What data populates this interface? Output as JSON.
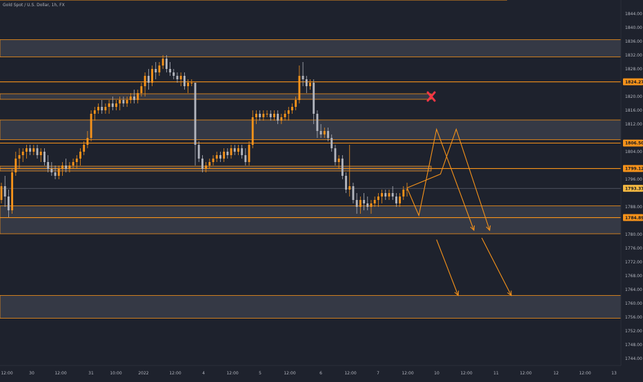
{
  "header": {
    "symbol_title": "Gold Spot / U.S. Dollar, 1h, FX"
  },
  "colors": {
    "background": "#1e222d",
    "zone_fill": "#373b47",
    "level_line": "#f7931a",
    "bull_candle": "#f7931a",
    "bear_candle": "#b2b5be",
    "axis_text": "#b2b5be",
    "invalid_marker": "#f23645",
    "last_price_badge": "#f5b942"
  },
  "chart_data": {
    "type": "candlestick",
    "title": "Gold Spot / U.S. Dollar, 1h, FX",
    "ylim": [
      1742,
      1848
    ],
    "y_ticks": [
      1844,
      1840,
      1836,
      1832,
      1828,
      1820,
      1816,
      1812,
      1804,
      1796,
      1788,
      1780,
      1776,
      1772,
      1768,
      1764,
      1760,
      1756,
      1752,
      1748,
      1744
    ],
    "x_ticks": [
      "12:00",
      "30",
      "12:00",
      "31",
      "10:00",
      "2022",
      "12:00",
      "4",
      "12:00",
      "5",
      "12:00",
      "6",
      "12:00",
      "7",
      "12:00",
      "10",
      "12:00",
      "11",
      "12:00",
      "12",
      "12:00",
      "13"
    ],
    "price_badges": [
      {
        "label": "1824.27",
        "value": 1824.27,
        "style": "level"
      },
      {
        "label": "1806.50",
        "value": 1806.5,
        "style": "level"
      },
      {
        "label": "1799.12",
        "value": 1799.12,
        "style": "level"
      },
      {
        "label": "1793.37",
        "value": 1793.37,
        "style": "last"
      },
      {
        "label": "1784.89",
        "value": 1784.89,
        "style": "level"
      }
    ],
    "zones": [
      {
        "low": 1831.5,
        "high": 1836.5,
        "extent": "full"
      },
      {
        "low": 1819.2,
        "high": 1820.8,
        "extent": "partial"
      },
      {
        "low": 1807.5,
        "high": 1813.2,
        "extent": "full"
      },
      {
        "low": 1798.4,
        "high": 1799.8,
        "extent": "partial"
      },
      {
        "low": 1780.2,
        "high": 1788.3,
        "extent": "full"
      },
      {
        "low": 1755.7,
        "high": 1762.3,
        "extent": "full"
      }
    ],
    "levels": [
      1848,
      1824.27,
      1806.5,
      1799.12,
      1784.89
    ],
    "last_price": 1793.37,
    "projection_paths": [
      [
        [
          0,
          1793.5
        ],
        [
          0.3,
          1785.5
        ],
        [
          0.75,
          1810.5
        ],
        [
          1.7,
          1781.2
        ]
      ],
      [
        [
          0,
          1793.5
        ],
        [
          0.85,
          1797.5
        ],
        [
          1.25,
          1810.5
        ],
        [
          2.1,
          1781.2
        ]
      ],
      [
        [
          0.75,
          1778.5
        ],
        [
          1.3,
          1762.3
        ]
      ],
      [
        [
          1.9,
          1779
        ],
        [
          2.65,
          1762.3
        ]
      ]
    ],
    "candles": [
      {
        "o": 1790,
        "h": 1795,
        "l": 1789,
        "c": 1794
      },
      {
        "o": 1794,
        "h": 1797,
        "l": 1788,
        "c": 1791
      },
      {
        "o": 1791,
        "h": 1793,
        "l": 1785,
        "c": 1787
      },
      {
        "o": 1787,
        "h": 1799,
        "l": 1786,
        "c": 1798
      },
      {
        "o": 1798,
        "h": 1804,
        "l": 1797,
        "c": 1802
      },
      {
        "o": 1802,
        "h": 1805,
        "l": 1799,
        "c": 1803
      },
      {
        "o": 1803,
        "h": 1805,
        "l": 1801,
        "c": 1804
      },
      {
        "o": 1804,
        "h": 1806,
        "l": 1802,
        "c": 1805
      },
      {
        "o": 1805,
        "h": 1806,
        "l": 1803,
        "c": 1804
      },
      {
        "o": 1804,
        "h": 1806,
        "l": 1803,
        "c": 1805
      },
      {
        "o": 1805,
        "h": 1806,
        "l": 1802,
        "c": 1803
      },
      {
        "o": 1803,
        "h": 1805,
        "l": 1801,
        "c": 1804
      },
      {
        "o": 1804,
        "h": 1805,
        "l": 1800,
        "c": 1801
      },
      {
        "o": 1801,
        "h": 1803,
        "l": 1798,
        "c": 1799
      },
      {
        "o": 1799,
        "h": 1801,
        "l": 1797,
        "c": 1798
      },
      {
        "o": 1798,
        "h": 1800,
        "l": 1796,
        "c": 1797
      },
      {
        "o": 1797,
        "h": 1800,
        "l": 1796,
        "c": 1799
      },
      {
        "o": 1799,
        "h": 1801,
        "l": 1797,
        "c": 1800
      },
      {
        "o": 1800,
        "h": 1802,
        "l": 1798,
        "c": 1799
      },
      {
        "o": 1799,
        "h": 1801,
        "l": 1798,
        "c": 1800
      },
      {
        "o": 1800,
        "h": 1802,
        "l": 1799,
        "c": 1801
      },
      {
        "o": 1801,
        "h": 1803,
        "l": 1799,
        "c": 1802
      },
      {
        "o": 1802,
        "h": 1805,
        "l": 1800,
        "c": 1804
      },
      {
        "o": 1804,
        "h": 1807,
        "l": 1803,
        "c": 1806
      },
      {
        "o": 1806,
        "h": 1810,
        "l": 1805,
        "c": 1808
      },
      {
        "o": 1808,
        "h": 1816,
        "l": 1807,
        "c": 1815
      },
      {
        "o": 1815,
        "h": 1817,
        "l": 1813,
        "c": 1816
      },
      {
        "o": 1816,
        "h": 1818,
        "l": 1815,
        "c": 1817
      },
      {
        "o": 1817,
        "h": 1819,
        "l": 1815,
        "c": 1816
      },
      {
        "o": 1816,
        "h": 1818,
        "l": 1815,
        "c": 1817
      },
      {
        "o": 1817,
        "h": 1819,
        "l": 1815,
        "c": 1818
      },
      {
        "o": 1818,
        "h": 1820,
        "l": 1816,
        "c": 1817
      },
      {
        "o": 1817,
        "h": 1819,
        "l": 1816,
        "c": 1818
      },
      {
        "o": 1818,
        "h": 1820,
        "l": 1816,
        "c": 1819
      },
      {
        "o": 1819,
        "h": 1820,
        "l": 1817,
        "c": 1818
      },
      {
        "o": 1818,
        "h": 1820,
        "l": 1817,
        "c": 1819
      },
      {
        "o": 1819,
        "h": 1821,
        "l": 1818,
        "c": 1820
      },
      {
        "o": 1820,
        "h": 1822,
        "l": 1818,
        "c": 1819
      },
      {
        "o": 1819,
        "h": 1822,
        "l": 1818,
        "c": 1821
      },
      {
        "o": 1821,
        "h": 1824,
        "l": 1820,
        "c": 1823
      },
      {
        "o": 1823,
        "h": 1827,
        "l": 1820,
        "c": 1826
      },
      {
        "o": 1826,
        "h": 1828,
        "l": 1822,
        "c": 1824
      },
      {
        "o": 1824,
        "h": 1829,
        "l": 1823,
        "c": 1828
      },
      {
        "o": 1828,
        "h": 1830,
        "l": 1825,
        "c": 1827
      },
      {
        "o": 1827,
        "h": 1830,
        "l": 1826,
        "c": 1829
      },
      {
        "o": 1829,
        "h": 1832,
        "l": 1828,
        "c": 1831
      },
      {
        "o": 1831,
        "h": 1832,
        "l": 1827,
        "c": 1828
      },
      {
        "o": 1828,
        "h": 1830,
        "l": 1826,
        "c": 1827
      },
      {
        "o": 1827,
        "h": 1828,
        "l": 1825,
        "c": 1826
      },
      {
        "o": 1826,
        "h": 1827,
        "l": 1824,
        "c": 1825
      },
      {
        "o": 1825,
        "h": 1827,
        "l": 1823,
        "c": 1826
      },
      {
        "o": 1826,
        "h": 1827,
        "l": 1822,
        "c": 1823
      },
      {
        "o": 1823,
        "h": 1825,
        "l": 1821,
        "c": 1824
      },
      {
        "o": 1824,
        "h": 1825,
        "l": 1823,
        "c": 1824
      },
      {
        "o": 1824,
        "h": 1824,
        "l": 1800,
        "c": 1806
      },
      {
        "o": 1806,
        "h": 1807,
        "l": 1801,
        "c": 1802
      },
      {
        "o": 1802,
        "h": 1803,
        "l": 1798,
        "c": 1799
      },
      {
        "o": 1799,
        "h": 1801,
        "l": 1798,
        "c": 1800
      },
      {
        "o": 1800,
        "h": 1802,
        "l": 1799,
        "c": 1801
      },
      {
        "o": 1801,
        "h": 1803,
        "l": 1800,
        "c": 1802
      },
      {
        "o": 1802,
        "h": 1804,
        "l": 1801,
        "c": 1803
      },
      {
        "o": 1803,
        "h": 1804,
        "l": 1801,
        "c": 1802
      },
      {
        "o": 1802,
        "h": 1805,
        "l": 1801,
        "c": 1804
      },
      {
        "o": 1804,
        "h": 1805,
        "l": 1802,
        "c": 1803
      },
      {
        "o": 1803,
        "h": 1806,
        "l": 1802,
        "c": 1805
      },
      {
        "o": 1805,
        "h": 1806,
        "l": 1803,
        "c": 1804
      },
      {
        "o": 1804,
        "h": 1806,
        "l": 1803,
        "c": 1805
      },
      {
        "o": 1805,
        "h": 1806,
        "l": 1802,
        "c": 1803
      },
      {
        "o": 1803,
        "h": 1805,
        "l": 1800,
        "c": 1801
      },
      {
        "o": 1801,
        "h": 1807,
        "l": 1800,
        "c": 1806
      },
      {
        "o": 1806,
        "h": 1816,
        "l": 1805,
        "c": 1814
      },
      {
        "o": 1814,
        "h": 1816,
        "l": 1812,
        "c": 1815
      },
      {
        "o": 1815,
        "h": 1816,
        "l": 1813,
        "c": 1814
      },
      {
        "o": 1814,
        "h": 1816,
        "l": 1813,
        "c": 1815
      },
      {
        "o": 1815,
        "h": 1816,
        "l": 1814,
        "c": 1815
      },
      {
        "o": 1815,
        "h": 1816,
        "l": 1813,
        "c": 1814
      },
      {
        "o": 1814,
        "h": 1816,
        "l": 1813,
        "c": 1815
      },
      {
        "o": 1815,
        "h": 1816,
        "l": 1812,
        "c": 1813
      },
      {
        "o": 1813,
        "h": 1815,
        "l": 1812,
        "c": 1814
      },
      {
        "o": 1814,
        "h": 1816,
        "l": 1813,
        "c": 1815
      },
      {
        "o": 1815,
        "h": 1817,
        "l": 1813,
        "c": 1816
      },
      {
        "o": 1816,
        "h": 1818,
        "l": 1815,
        "c": 1817
      },
      {
        "o": 1817,
        "h": 1820,
        "l": 1816,
        "c": 1819
      },
      {
        "o": 1819,
        "h": 1829,
        "l": 1818,
        "c": 1826
      },
      {
        "o": 1826,
        "h": 1830,
        "l": 1823,
        "c": 1825
      },
      {
        "o": 1825,
        "h": 1826,
        "l": 1821,
        "c": 1823
      },
      {
        "o": 1823,
        "h": 1825,
        "l": 1822,
        "c": 1824
      },
      {
        "o": 1824,
        "h": 1825,
        "l": 1812,
        "c": 1815
      },
      {
        "o": 1815,
        "h": 1816,
        "l": 1808,
        "c": 1810
      },
      {
        "o": 1810,
        "h": 1812,
        "l": 1808,
        "c": 1809
      },
      {
        "o": 1809,
        "h": 1811,
        "l": 1808,
        "c": 1810
      },
      {
        "o": 1810,
        "h": 1811,
        "l": 1807,
        "c": 1808
      },
      {
        "o": 1808,
        "h": 1809,
        "l": 1804,
        "c": 1805
      },
      {
        "o": 1805,
        "h": 1806,
        "l": 1800,
        "c": 1801
      },
      {
        "o": 1801,
        "h": 1803,
        "l": 1799,
        "c": 1802
      },
      {
        "o": 1802,
        "h": 1803,
        "l": 1796,
        "c": 1797
      },
      {
        "o": 1797,
        "h": 1798,
        "l": 1792,
        "c": 1793
      },
      {
        "o": 1793,
        "h": 1806,
        "l": 1791,
        "c": 1794
      },
      {
        "o": 1794,
        "h": 1795,
        "l": 1789,
        "c": 1790
      },
      {
        "o": 1790,
        "h": 1792,
        "l": 1786,
        "c": 1788
      },
      {
        "o": 1788,
        "h": 1791,
        "l": 1786,
        "c": 1790
      },
      {
        "o": 1790,
        "h": 1792,
        "l": 1787,
        "c": 1789
      },
      {
        "o": 1789,
        "h": 1791,
        "l": 1787,
        "c": 1788
      },
      {
        "o": 1788,
        "h": 1790,
        "l": 1786,
        "c": 1789
      },
      {
        "o": 1789,
        "h": 1791,
        "l": 1788,
        "c": 1790
      },
      {
        "o": 1790,
        "h": 1792,
        "l": 1788,
        "c": 1791
      },
      {
        "o": 1791,
        "h": 1793,
        "l": 1789,
        "c": 1792
      },
      {
        "o": 1792,
        "h": 1793,
        "l": 1790,
        "c": 1791
      },
      {
        "o": 1791,
        "h": 1793,
        "l": 1790,
        "c": 1792
      },
      {
        "o": 1792,
        "h": 1794,
        "l": 1790,
        "c": 1791
      },
      {
        "o": 1791,
        "h": 1792,
        "l": 1788,
        "c": 1789
      },
      {
        "o": 1789,
        "h": 1792,
        "l": 1788,
        "c": 1791
      },
      {
        "o": 1791,
        "h": 1794,
        "l": 1790,
        "c": 1793
      },
      {
        "o": 1793,
        "h": 1795,
        "l": 1791,
        "c": 1793
      }
    ]
  }
}
